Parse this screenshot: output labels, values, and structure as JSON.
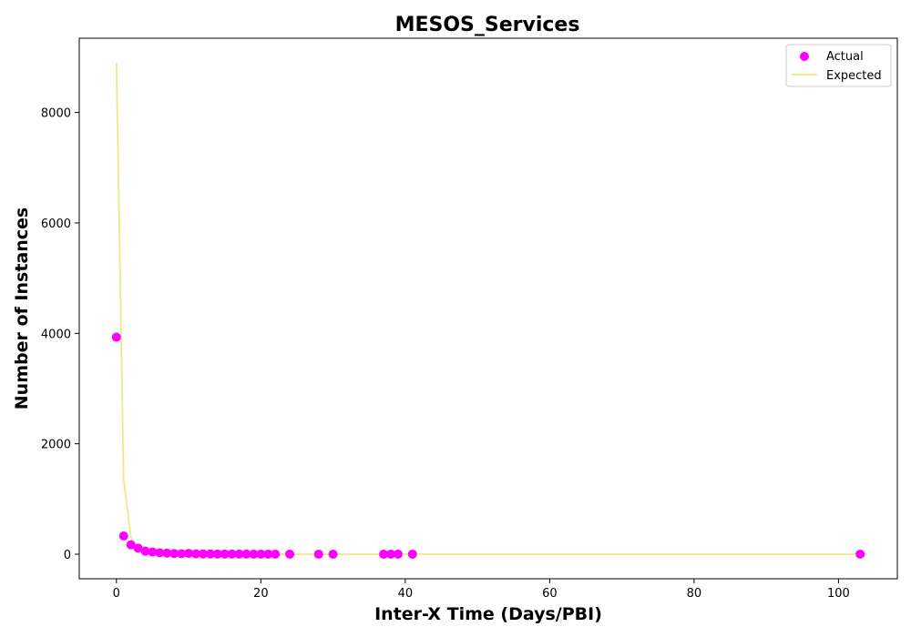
{
  "chart_data": {
    "type": "scatter",
    "title": "MESOS_Services",
    "xlabel": "Inter-X Time (Days/PBI)",
    "ylabel": "Number of Instances",
    "xlim": [
      -5.15,
      108.15
    ],
    "ylim": [
      -445,
      9345
    ],
    "xticks": [
      0,
      20,
      40,
      60,
      80,
      100
    ],
    "yticks": [
      0,
      2000,
      4000,
      6000,
      8000
    ],
    "grid": false,
    "legend": {
      "placement": "top-right",
      "entries": [
        "Actual",
        "Expected"
      ]
    },
    "colors": {
      "actual": "#ff00ff",
      "expected": "#f0e68c"
    },
    "series": [
      {
        "name": "Actual",
        "kind": "scatter",
        "x": [
          0,
          1,
          2,
          3,
          4,
          5,
          6,
          7,
          8,
          9,
          10,
          11,
          12,
          13,
          14,
          15,
          16,
          17,
          18,
          19,
          20,
          21,
          22,
          24,
          28,
          30,
          37,
          38,
          39,
          41,
          103
        ],
        "y": [
          3930,
          330,
          170,
          110,
          55,
          40,
          25,
          20,
          12,
          8,
          15,
          6,
          5,
          4,
          3,
          3,
          2,
          2,
          2,
          1,
          1,
          1,
          1,
          1,
          1,
          1,
          1,
          1,
          1,
          1,
          1
        ]
      },
      {
        "name": "Expected",
        "kind": "line",
        "x": [
          0,
          1,
          2,
          3,
          4,
          5,
          6,
          7,
          8,
          9,
          10,
          12,
          14,
          16,
          18,
          20,
          25,
          30,
          40,
          60,
          80,
          100,
          104
        ],
        "y": [
          8900,
          1350,
          300,
          90,
          30,
          12,
          5,
          2,
          1,
          0.5,
          0.2,
          0,
          0,
          0,
          0,
          0,
          0,
          0,
          0,
          0,
          0,
          0,
          0
        ]
      }
    ]
  }
}
